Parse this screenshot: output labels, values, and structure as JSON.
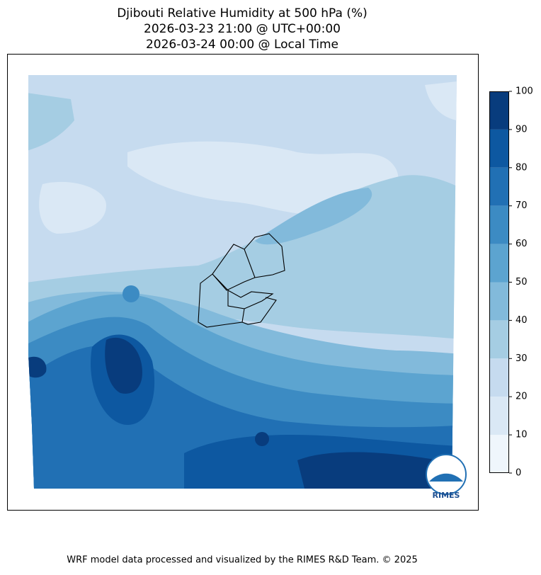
{
  "header": {
    "title_lines": [
      "Djibouti Relative Humidity at 500 hPa (%)",
      "2026-03-23 21:00 @ UTC+00:00",
      "2026-03-24 00:00 @ Local Time"
    ]
  },
  "colorbar": {
    "ticks": [
      0,
      10,
      20,
      30,
      40,
      50,
      60,
      70,
      80,
      90,
      100
    ],
    "colors": [
      "#eff6fc",
      "#dae8f5",
      "#c6dbef",
      "#a5cde3",
      "#82badb",
      "#5ca4d0",
      "#3c8bc3",
      "#2170b4",
      "#0d58a1",
      "#083c7d"
    ]
  },
  "logo_text": "RIMES",
  "footer": "WRF model data processed and visualized by the RIMES R&D Team. © 2025"
}
